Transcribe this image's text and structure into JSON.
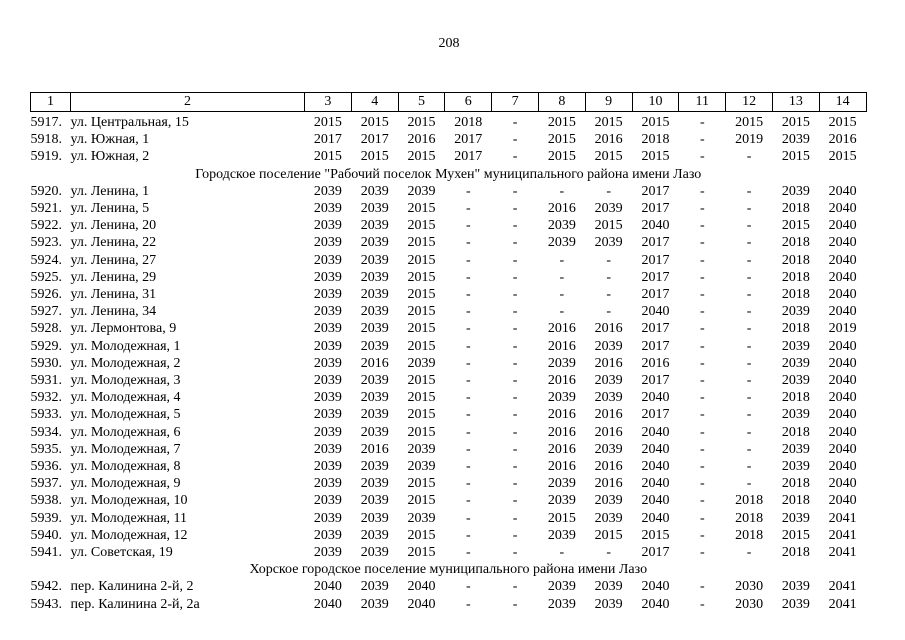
{
  "page": {
    "number": "208"
  },
  "colors": {
    "text": "#000000",
    "background": "#ffffff"
  },
  "table": {
    "headers": [
      "1",
      "2",
      "3",
      "4",
      "5",
      "6",
      "7",
      "8",
      "9",
      "10",
      "11",
      "12",
      "13",
      "14"
    ],
    "rows": [
      {
        "type": "data",
        "num": "5917.",
        "address": "ул. Центральная, 15",
        "values": [
          "2015",
          "2015",
          "2015",
          "2018",
          "-",
          "2015",
          "2015",
          "2015",
          "-",
          "2015",
          "2015",
          "2015"
        ]
      },
      {
        "type": "data",
        "num": "5918.",
        "address": "ул. Южная, 1",
        "values": [
          "2017",
          "2017",
          "2016",
          "2017",
          "-",
          "2015",
          "2016",
          "2018",
          "-",
          "2019",
          "2039",
          "2016"
        ]
      },
      {
        "type": "data",
        "num": "5919.",
        "address": "ул. Южная, 2",
        "values": [
          "2015",
          "2015",
          "2015",
          "2017",
          "-",
          "2015",
          "2015",
          "2015",
          "-",
          "-",
          "2015",
          "2015"
        ]
      },
      {
        "type": "section",
        "label": "Городское поселение \"Рабочий поселок Мухен\" муниципального района имени Лазо"
      },
      {
        "type": "data",
        "num": "5920.",
        "address": "ул. Ленина, 1",
        "values": [
          "2039",
          "2039",
          "2039",
          "-",
          "-",
          "-",
          "-",
          "2017",
          "-",
          "-",
          "2039",
          "2040"
        ]
      },
      {
        "type": "data",
        "num": "5921.",
        "address": "ул. Ленина, 5",
        "values": [
          "2039",
          "2039",
          "2015",
          "-",
          "-",
          "2016",
          "2039",
          "2017",
          "-",
          "-",
          "2018",
          "2040"
        ]
      },
      {
        "type": "data",
        "num": "5922.",
        "address": "ул. Ленина, 20",
        "values": [
          "2039",
          "2039",
          "2015",
          "-",
          "-",
          "2039",
          "2015",
          "2040",
          "-",
          "-",
          "2015",
          "2040"
        ]
      },
      {
        "type": "data",
        "num": "5923.",
        "address": "ул. Ленина, 22",
        "values": [
          "2039",
          "2039",
          "2015",
          "-",
          "-",
          "2039",
          "2039",
          "2017",
          "-",
          "-",
          "2018",
          "2040"
        ]
      },
      {
        "type": "data",
        "num": "5924.",
        "address": "ул. Ленина, 27",
        "values": [
          "2039",
          "2039",
          "2015",
          "-",
          "-",
          "-",
          "-",
          "2017",
          "-",
          "-",
          "2018",
          "2040"
        ]
      },
      {
        "type": "data",
        "num": "5925.",
        "address": "ул. Ленина, 29",
        "values": [
          "2039",
          "2039",
          "2015",
          "-",
          "-",
          "-",
          "-",
          "2017",
          "-",
          "-",
          "2018",
          "2040"
        ]
      },
      {
        "type": "data",
        "num": "5926.",
        "address": "ул. Ленина, 31",
        "values": [
          "2039",
          "2039",
          "2015",
          "-",
          "-",
          "-",
          "-",
          "2017",
          "-",
          "-",
          "2018",
          "2040"
        ]
      },
      {
        "type": "data",
        "num": "5927.",
        "address": "ул. Ленина, 34",
        "values": [
          "2039",
          "2039",
          "2015",
          "-",
          "-",
          "-",
          "-",
          "2040",
          "-",
          "-",
          "2039",
          "2040"
        ]
      },
      {
        "type": "data",
        "num": "5928.",
        "address": "ул. Лермонтова, 9",
        "values": [
          "2039",
          "2039",
          "2015",
          "-",
          "-",
          "2016",
          "2016",
          "2017",
          "-",
          "-",
          "2018",
          "2019"
        ]
      },
      {
        "type": "data",
        "num": "5929.",
        "address": "ул. Молодежная, 1",
        "values": [
          "2039",
          "2039",
          "2015",
          "-",
          "-",
          "2016",
          "2039",
          "2017",
          "-",
          "-",
          "2039",
          "2040"
        ]
      },
      {
        "type": "data",
        "num": "5930.",
        "address": "ул. Молодежная, 2",
        "values": [
          "2039",
          "2016",
          "2039",
          "-",
          "-",
          "2039",
          "2016",
          "2016",
          "-",
          "-",
          "2039",
          "2040"
        ]
      },
      {
        "type": "data",
        "num": "5931.",
        "address": "ул. Молодежная, 3",
        "values": [
          "2039",
          "2039",
          "2015",
          "-",
          "-",
          "2016",
          "2039",
          "2017",
          "-",
          "-",
          "2039",
          "2040"
        ]
      },
      {
        "type": "data",
        "num": "5932.",
        "address": "ул. Молодежная, 4",
        "values": [
          "2039",
          "2039",
          "2015",
          "-",
          "-",
          "2039",
          "2039",
          "2040",
          "-",
          "-",
          "2018",
          "2040"
        ]
      },
      {
        "type": "data",
        "num": "5933.",
        "address": "ул. Молодежная, 5",
        "values": [
          "2039",
          "2039",
          "2015",
          "-",
          "-",
          "2016",
          "2016",
          "2017",
          "-",
          "-",
          "2039",
          "2040"
        ]
      },
      {
        "type": "data",
        "num": "5934.",
        "address": "ул. Молодежная, 6",
        "values": [
          "2039",
          "2039",
          "2015",
          "-",
          "-",
          "2016",
          "2016",
          "2040",
          "-",
          "-",
          "2018",
          "2040"
        ]
      },
      {
        "type": "data",
        "num": "5935.",
        "address": "ул. Молодежная, 7",
        "values": [
          "2039",
          "2016",
          "2039",
          "-",
          "-",
          "2016",
          "2039",
          "2040",
          "-",
          "-",
          "2039",
          "2040"
        ]
      },
      {
        "type": "data",
        "num": "5936.",
        "address": "ул. Молодежная, 8",
        "values": [
          "2039",
          "2039",
          "2039",
          "-",
          "-",
          "2016",
          "2016",
          "2040",
          "-",
          "-",
          "2039",
          "2040"
        ]
      },
      {
        "type": "data",
        "num": "5937.",
        "address": "ул. Молодежная, 9",
        "values": [
          "2039",
          "2039",
          "2015",
          "-",
          "-",
          "2039",
          "2016",
          "2040",
          "-",
          "-",
          "2018",
          "2040"
        ]
      },
      {
        "type": "data",
        "num": "5938.",
        "address": "ул. Молодежная, 10",
        "values": [
          "2039",
          "2039",
          "2015",
          "-",
          "-",
          "2039",
          "2039",
          "2040",
          "-",
          "2018",
          "2018",
          "2040"
        ]
      },
      {
        "type": "data",
        "num": "5939.",
        "address": "ул. Молодежная, 11",
        "values": [
          "2039",
          "2039",
          "2039",
          "-",
          "-",
          "2015",
          "2039",
          "2040",
          "-",
          "2018",
          "2039",
          "2041"
        ]
      },
      {
        "type": "data",
        "num": "5940.",
        "address": "ул. Молодежная, 12",
        "values": [
          "2039",
          "2039",
          "2015",
          "-",
          "-",
          "2039",
          "2015",
          "2015",
          "-",
          "2018",
          "2015",
          "2041"
        ]
      },
      {
        "type": "data",
        "num": "5941.",
        "address": "ул. Советская, 19",
        "values": [
          "2039",
          "2039",
          "2015",
          "-",
          "-",
          "-",
          "-",
          "2017",
          "-",
          "-",
          "2018",
          "2041"
        ]
      },
      {
        "type": "section",
        "label": "Хорское городское поселение муниципального района имени Лазо"
      },
      {
        "type": "data",
        "num": "5942.",
        "address": "пер. Калинина 2-й, 2",
        "values": [
          "2040",
          "2039",
          "2040",
          "-",
          "-",
          "2039",
          "2039",
          "2040",
          "-",
          "2030",
          "2039",
          "2041"
        ]
      },
      {
        "type": "data",
        "num": "5943.",
        "address": "пер. Калинина 2-й, 2а",
        "values": [
          "2040",
          "2039",
          "2040",
          "-",
          "-",
          "2039",
          "2039",
          "2040",
          "-",
          "2030",
          "2039",
          "2041"
        ]
      }
    ]
  }
}
